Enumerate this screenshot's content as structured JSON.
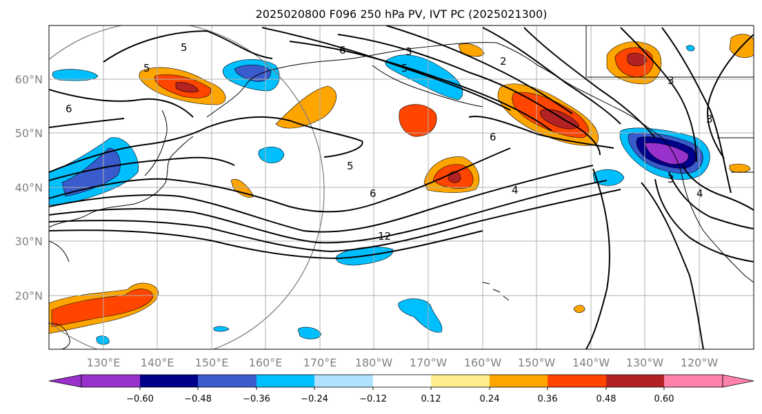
{
  "title": "2025020800 F096 250 hPa PV, IVT PC (2025021300)",
  "lat_labels": [
    "60°N",
    "50°N",
    "40°N",
    "30°N",
    "20°N"
  ],
  "lon_labels": [
    "130°E",
    "140°E",
    "150°E",
    "160°E",
    "170°E",
    "180°W",
    "170°W",
    "160°W",
    "150°W",
    "140°W",
    "130°W",
    "120°W"
  ],
  "colorbar": {
    "colors": [
      "#9932cc",
      "#00008b",
      "#3a5bcc",
      "#00bfff",
      "#b0e2ff",
      "#ffffff",
      "#ffec8b",
      "#ffa500",
      "#ff4500",
      "#b22222",
      "#ff82ab"
    ],
    "ticks": [
      "−0.60",
      "−0.48",
      "−0.36",
      "−0.24",
      "−0.12",
      "0.12",
      "0.24",
      "0.36",
      "0.48",
      "0.60"
    ]
  },
  "contour_labels": [
    "5",
    "6",
    "3",
    "5",
    "2",
    "5",
    "6",
    "5",
    "6",
    "4",
    "12",
    "3",
    "6",
    "3",
    "4",
    "3"
  ]
}
